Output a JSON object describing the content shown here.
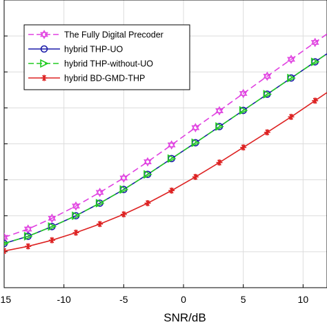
{
  "chart_data": {
    "type": "line",
    "xlabel": "SNR/dB",
    "ylabel": "",
    "title": "",
    "xlim": [
      -15,
      12
    ],
    "ylim": [
      0,
      8
    ],
    "xticks": [
      -15,
      -10,
      -5,
      0,
      5,
      10
    ],
    "yticks": [
      0,
      1,
      2,
      3,
      4,
      5,
      6,
      7,
      8
    ],
    "grid": true,
    "legend_position": "top-left",
    "x": [
      -15,
      -13,
      -11,
      -9,
      -7,
      -5,
      -3,
      -1,
      1,
      3,
      5,
      7,
      9,
      11
    ],
    "series": [
      {
        "name": "The Fully Digital Precoder",
        "color": "#e040e0",
        "dash": "dashed",
        "marker": "hexagram",
        "values": [
          1.4,
          1.63,
          1.93,
          2.27,
          2.65,
          3.05,
          3.5,
          3.97,
          4.45,
          4.92,
          5.4,
          5.88,
          6.35,
          6.82
        ]
      },
      {
        "name": "hybrid THP-UO",
        "color": "#1a1aa8",
        "dash": "solid",
        "marker": "circle",
        "values": [
          1.23,
          1.43,
          1.7,
          2.0,
          2.35,
          2.73,
          3.15,
          3.59,
          4.03,
          4.48,
          4.93,
          5.38,
          5.83,
          6.28
        ]
      },
      {
        "name": "hybrid THP-without-UO",
        "color": "#22cc22",
        "dash": "dashed",
        "marker": "triangle-right",
        "values": [
          1.23,
          1.43,
          1.7,
          2.0,
          2.35,
          2.73,
          3.15,
          3.59,
          4.03,
          4.48,
          4.93,
          5.38,
          5.83,
          6.28
        ]
      },
      {
        "name": "hybrid BD-GMD-THP",
        "color": "#dd2222",
        "dash": "solid",
        "marker": "asterisk",
        "values": [
          1.02,
          1.15,
          1.32,
          1.53,
          1.77,
          2.04,
          2.35,
          2.7,
          3.08,
          3.48,
          3.9,
          4.32,
          4.75,
          5.2
        ]
      }
    ]
  }
}
